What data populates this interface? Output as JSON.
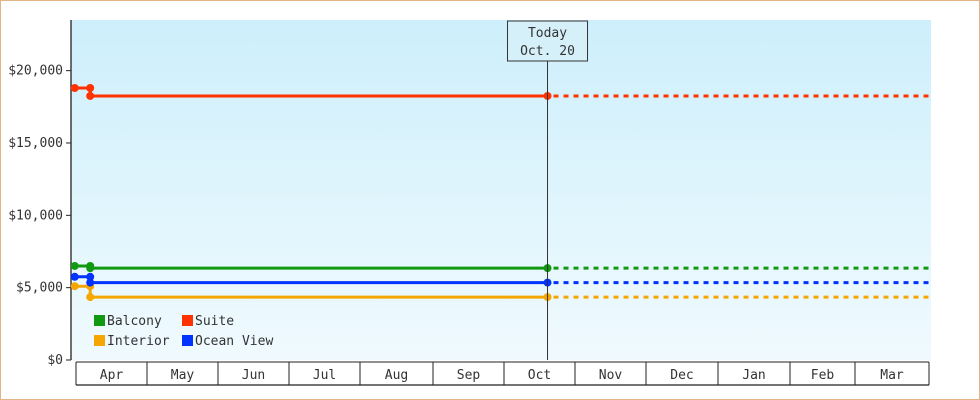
{
  "chart_data": {
    "type": "line",
    "title": "",
    "xlabel": "",
    "ylabel": "",
    "ylim": [
      0,
      23500
    ],
    "y_ticks": [
      {
        "value": 0,
        "label": "$0"
      },
      {
        "value": 5000,
        "label": "$5,000"
      },
      {
        "value": 10000,
        "label": "$10,000"
      },
      {
        "value": 15000,
        "label": "$15,000"
      },
      {
        "value": 20000,
        "label": "$20,000"
      }
    ],
    "months": [
      "Apr",
      "May",
      "Jun",
      "Jul",
      "Aug",
      "Sep",
      "Oct",
      "Nov",
      "Dec",
      "Jan",
      "Feb",
      "Mar"
    ],
    "today": {
      "line1": "Today",
      "line2": "Oct. 20"
    },
    "series": [
      {
        "name": "Balcony",
        "color": "#119911",
        "points": [
          [
            "Mar 31",
            6500
          ],
          [
            "Apr 7",
            6500
          ],
          [
            "Apr 7",
            6350
          ],
          [
            "Oct 20",
            6350
          ]
        ],
        "projected": 6350
      },
      {
        "name": "Suite",
        "color": "#ff3300",
        "points": [
          [
            "Mar 31",
            18800
          ],
          [
            "Apr 7",
            18800
          ],
          [
            "Apr 7",
            18250
          ],
          [
            "Oct 20",
            18250
          ]
        ],
        "projected": 18250
      },
      {
        "name": "Interior",
        "color": "#f5a600",
        "points": [
          [
            "Mar 31",
            5100
          ],
          [
            "Apr 7",
            5100
          ],
          [
            "Apr 7",
            4350
          ],
          [
            "Oct 20",
            4350
          ]
        ],
        "projected": 4350
      },
      {
        "name": "Ocean View",
        "color": "#0033ff",
        "points": [
          [
            "Mar 31",
            5750
          ],
          [
            "Apr 7",
            5750
          ],
          [
            "Apr 7",
            5350
          ],
          [
            "Oct 20",
            5350
          ]
        ],
        "projected": 5350
      }
    ],
    "legend": {
      "position": "bottom-left",
      "columns": 2
    },
    "grid": false,
    "background": {
      "top": "#cdeffb",
      "bottom": "#f0fafe"
    }
  }
}
